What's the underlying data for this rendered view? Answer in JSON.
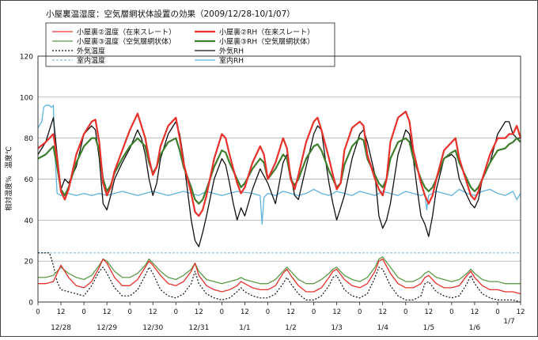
{
  "chart_data": {
    "type": "line",
    "title": "小屋裏温湿度：空気層網状体設置の効果（2009/12/28-10/1/07）",
    "ylabel": "相対湿度%　温度℃",
    "ylim": [
      0,
      120
    ],
    "yticks": [
      0,
      20,
      40,
      60,
      80,
      100,
      120
    ],
    "xlim": [
      0,
      252
    ],
    "xticks_hours": [
      0,
      12,
      24,
      36,
      48,
      60,
      72,
      84,
      96,
      108,
      120,
      132,
      144,
      156,
      168,
      180,
      192,
      204,
      216,
      228,
      240,
      252
    ],
    "xtick_labels": [
      "0",
      "12",
      "0",
      "12",
      "0",
      "12",
      "0",
      "12",
      "0",
      "12",
      "0",
      "12",
      "0",
      "12",
      "0",
      "12",
      "0",
      "12",
      "0",
      "12",
      "0",
      "12"
    ],
    "date_labels": [
      {
        "hour": 12,
        "text": "12/28"
      },
      {
        "hour": 36,
        "text": "12/29"
      },
      {
        "hour": 60,
        "text": "12/30"
      },
      {
        "hour": 84,
        "text": "12/31"
      },
      {
        "hour": 108,
        "text": "1/1"
      },
      {
        "hour": 132,
        "text": "1/2"
      },
      {
        "hour": 156,
        "text": "1/3"
      },
      {
        "hour": 180,
        "text": "1/4"
      },
      {
        "hour": 204,
        "text": "1/5"
      },
      {
        "hour": 228,
        "text": "1/6"
      },
      {
        "hour": 246,
        "text": "1/7"
      }
    ],
    "grid": "horizontal",
    "legend_position": "top",
    "series": [
      {
        "name": "小屋裏②温度（在来スレート）",
        "color": "#e8302a",
        "width": 1.3,
        "dash": "",
        "x": [
          0,
          4,
          8,
          10,
          12,
          16,
          20,
          24,
          28,
          32,
          34,
          36,
          40,
          44,
          48,
          52,
          56,
          58,
          60,
          64,
          68,
          72,
          76,
          80,
          82,
          84,
          88,
          92,
          96,
          100,
          104,
          106,
          108,
          112,
          116,
          120,
          124,
          128,
          130,
          132,
          136,
          140,
          144,
          148,
          152,
          154,
          156,
          160,
          164,
          168,
          172,
          176,
          178,
          180,
          184,
          188,
          192,
          196,
          200,
          202,
          204,
          208,
          212,
          216,
          220,
          224,
          226,
          228,
          232,
          236,
          240,
          244,
          248,
          252
        ],
        "y": [
          9,
          9,
          10,
          14,
          18,
          12,
          8,
          7,
          10,
          17,
          21,
          19,
          12,
          8,
          8,
          11,
          17,
          20,
          18,
          13,
          9,
          8,
          10,
          15,
          19,
          13,
          8,
          6,
          5,
          6,
          8,
          10,
          9,
          7,
          6,
          6,
          8,
          14,
          16,
          13,
          8,
          5,
          5,
          7,
          12,
          15,
          16,
          11,
          8,
          7,
          9,
          15,
          20,
          21,
          14,
          9,
          7,
          7,
          9,
          12,
          13,
          9,
          7,
          7,
          8,
          13,
          15,
          12,
          8,
          6,
          6,
          5,
          5,
          4
        ]
      },
      {
        "name": "小屋裏③温度（空気層網状体）",
        "color": "#5c9a46",
        "width": 1.3,
        "dash": "",
        "x": [
          0,
          4,
          8,
          10,
          12,
          16,
          20,
          24,
          28,
          32,
          34,
          36,
          40,
          44,
          48,
          52,
          56,
          58,
          60,
          64,
          68,
          72,
          76,
          80,
          82,
          84,
          88,
          92,
          96,
          100,
          104,
          106,
          108,
          112,
          116,
          120,
          124,
          128,
          130,
          132,
          136,
          140,
          144,
          148,
          152,
          154,
          156,
          160,
          164,
          168,
          172,
          176,
          178,
          180,
          184,
          188,
          192,
          196,
          200,
          202,
          204,
          208,
          212,
          216,
          220,
          224,
          226,
          228,
          232,
          236,
          240,
          244,
          248,
          252
        ],
        "y": [
          12,
          12,
          13,
          15,
          17,
          14,
          12,
          11,
          13,
          18,
          21,
          20,
          15,
          12,
          12,
          14,
          18,
          21,
          19,
          15,
          12,
          11,
          13,
          16,
          19,
          15,
          11,
          10,
          9,
          10,
          11,
          12,
          11,
          10,
          9,
          9,
          11,
          15,
          17,
          15,
          11,
          9,
          9,
          11,
          14,
          16,
          17,
          13,
          11,
          10,
          12,
          17,
          21,
          22,
          17,
          12,
          10,
          10,
          12,
          14,
          15,
          12,
          11,
          10,
          11,
          14,
          16,
          14,
          11,
          10,
          10,
          9,
          9,
          9
        ]
      },
      {
        "name": "外気温度",
        "color": "#111111",
        "width": 1.2,
        "dash": "2,2",
        "x": [
          0,
          4,
          6,
          8,
          10,
          12,
          16,
          20,
          24,
          28,
          32,
          34,
          36,
          40,
          44,
          48,
          52,
          56,
          58,
          60,
          64,
          68,
          72,
          76,
          80,
          82,
          84,
          88,
          92,
          96,
          100,
          104,
          106,
          108,
          112,
          116,
          120,
          124,
          128,
          130,
          132,
          136,
          140,
          144,
          148,
          152,
          154,
          156,
          160,
          164,
          168,
          172,
          176,
          178,
          180,
          184,
          188,
          192,
          196,
          200,
          202,
          204,
          208,
          212,
          216,
          220,
          224,
          226,
          228,
          232,
          236,
          240,
          244,
          248,
          252
        ],
        "y": [
          24,
          24,
          24,
          18,
          10,
          6,
          5,
          4,
          3,
          8,
          15,
          17,
          14,
          7,
          3,
          3,
          6,
          13,
          17,
          14,
          6,
          3,
          2,
          4,
          9,
          15,
          9,
          4,
          2,
          1,
          2,
          5,
          7,
          5,
          3,
          2,
          2,
          4,
          9,
          12,
          9,
          4,
          1,
          1,
          3,
          8,
          12,
          13,
          6,
          3,
          2,
          4,
          12,
          17,
          16,
          8,
          3,
          1,
          1,
          3,
          9,
          10,
          5,
          3,
          2,
          3,
          9,
          13,
          9,
          4,
          2,
          1,
          1,
          1,
          0
        ]
      },
      {
        "name": "室内温度",
        "color": "#9cc9e6",
        "width": 1.4,
        "dash": "3,2",
        "x": [
          0,
          20,
          40,
          60,
          80,
          100,
          120,
          140,
          160,
          180,
          200,
          220,
          240,
          252
        ],
        "y": [
          24,
          24,
          24,
          24,
          24,
          24,
          24,
          24,
          24,
          24,
          24,
          24,
          24,
          24
        ]
      },
      {
        "name": "小屋裏②RH（在来スレート）",
        "color": "#e8302a",
        "width": 2.2,
        "dash": "",
        "x": [
          0,
          4,
          8,
          10,
          12,
          14,
          16,
          20,
          24,
          28,
          30,
          32,
          34,
          36,
          38,
          40,
          44,
          48,
          52,
          56,
          58,
          60,
          62,
          64,
          68,
          72,
          74,
          76,
          80,
          82,
          84,
          86,
          88,
          92,
          96,
          98,
          100,
          104,
          106,
          108,
          112,
          116,
          118,
          120,
          124,
          128,
          130,
          132,
          134,
          136,
          140,
          144,
          146,
          148,
          152,
          154,
          156,
          158,
          160,
          164,
          168,
          170,
          172,
          176,
          178,
          180,
          182,
          184,
          188,
          192,
          194,
          196,
          200,
          202,
          204,
          206,
          208,
          212,
          216,
          218,
          220,
          224,
          226,
          228,
          230,
          232,
          236,
          240,
          244,
          246,
          248,
          250,
          252
        ],
        "y": [
          75,
          78,
          82,
          70,
          54,
          50,
          55,
          72,
          82,
          88,
          89,
          78,
          58,
          52,
          56,
          64,
          74,
          84,
          92,
          80,
          70,
          62,
          66,
          76,
          86,
          90,
          80,
          68,
          53,
          44,
          42,
          45,
          52,
          70,
          82,
          80,
          72,
          58,
          53,
          56,
          68,
          76,
          72,
          60,
          68,
          80,
          75,
          60,
          55,
          62,
          78,
          88,
          90,
          84,
          70,
          62,
          55,
          58,
          74,
          85,
          88,
          86,
          72,
          60,
          55,
          52,
          60,
          78,
          90,
          93,
          88,
          74,
          58,
          52,
          48,
          52,
          60,
          74,
          78,
          80,
          70,
          58,
          52,
          50,
          54,
          60,
          72,
          80,
          80,
          82,
          82,
          86,
          80
        ]
      },
      {
        "name": "小屋裏③RH（空気層網状体）",
        "color": "#3e7d2e",
        "width": 2.2,
        "dash": "",
        "x": [
          0,
          4,
          8,
          10,
          12,
          14,
          16,
          20,
          24,
          28,
          30,
          32,
          34,
          36,
          38,
          40,
          44,
          48,
          52,
          56,
          58,
          60,
          62,
          64,
          68,
          72,
          74,
          76,
          80,
          82,
          84,
          86,
          88,
          92,
          96,
          98,
          100,
          104,
          106,
          108,
          112,
          116,
          118,
          120,
          124,
          128,
          130,
          132,
          134,
          136,
          140,
          144,
          146,
          148,
          152,
          154,
          156,
          158,
          160,
          164,
          168,
          170,
          172,
          176,
          178,
          180,
          182,
          184,
          188,
          192,
          194,
          196,
          200,
          202,
          204,
          206,
          208,
          212,
          216,
          218,
          220,
          224,
          226,
          228,
          230,
          232,
          236,
          240,
          244,
          246,
          248,
          250,
          252
        ],
        "y": [
          70,
          72,
          76,
          66,
          55,
          52,
          56,
          68,
          76,
          80,
          80,
          74,
          60,
          54,
          57,
          63,
          70,
          76,
          80,
          76,
          68,
          63,
          66,
          72,
          78,
          80,
          74,
          66,
          56,
          50,
          48,
          50,
          55,
          66,
          74,
          73,
          68,
          60,
          56,
          58,
          65,
          70,
          68,
          60,
          65,
          72,
          70,
          60,
          57,
          60,
          70,
          76,
          77,
          74,
          64,
          60,
          56,
          58,
          67,
          76,
          80,
          79,
          70,
          62,
          58,
          56,
          60,
          70,
          78,
          80,
          78,
          70,
          60,
          56,
          54,
          56,
          60,
          70,
          73,
          74,
          68,
          60,
          56,
          54,
          56,
          60,
          68,
          74,
          75,
          77,
          78,
          80,
          78
        ]
      },
      {
        "name": "外気RH",
        "color": "#111111",
        "width": 1.3,
        "dash": "",
        "x": [
          0,
          4,
          8,
          10,
          12,
          14,
          16,
          20,
          24,
          28,
          30,
          32,
          34,
          36,
          38,
          40,
          44,
          48,
          52,
          54,
          56,
          58,
          60,
          62,
          64,
          68,
          72,
          74,
          76,
          78,
          80,
          82,
          84,
          86,
          88,
          92,
          96,
          98,
          100,
          102,
          104,
          106,
          108,
          112,
          116,
          120,
          124,
          128,
          130,
          132,
          134,
          136,
          140,
          144,
          146,
          148,
          150,
          152,
          154,
          156,
          158,
          160,
          164,
          168,
          170,
          172,
          176,
          178,
          180,
          182,
          184,
          188,
          192,
          194,
          196,
          198,
          200,
          202,
          204,
          206,
          208,
          212,
          216,
          218,
          220,
          224,
          226,
          228,
          230,
          232,
          236,
          240,
          244,
          246,
          248,
          250,
          252
        ],
        "y": [
          72,
          78,
          90,
          72,
          55,
          60,
          58,
          66,
          82,
          86,
          84,
          70,
          48,
          45,
          52,
          60,
          68,
          75,
          84,
          80,
          72,
          60,
          52,
          58,
          70,
          82,
          88,
          82,
          70,
          55,
          40,
          30,
          27,
          34,
          42,
          60,
          70,
          67,
          58,
          48,
          40,
          46,
          42,
          55,
          65,
          58,
          48,
          68,
          72,
          62,
          52,
          50,
          66,
          82,
          86,
          84,
          70,
          58,
          48,
          40,
          46,
          52,
          70,
          82,
          84,
          78,
          62,
          42,
          36,
          40,
          48,
          72,
          84,
          82,
          70,
          55,
          42,
          38,
          32,
          42,
          55,
          70,
          72,
          70,
          60,
          52,
          48,
          46,
          50,
          60,
          68,
          82,
          88,
          88,
          82,
          80,
          80
        ]
      },
      {
        "name": "室内RH",
        "color": "#5fb3e0",
        "width": 1.3,
        "dash": "",
        "x": [
          0,
          2,
          3,
          4,
          5,
          6,
          7,
          8,
          9,
          10,
          12,
          16,
          20,
          24,
          28,
          32,
          36,
          40,
          44,
          48,
          52,
          56,
          60,
          64,
          68,
          72,
          76,
          80,
          84,
          88,
          92,
          96,
          100,
          104,
          112,
          116,
          117,
          118,
          120,
          124,
          128,
          132,
          136,
          140,
          144,
          148,
          152,
          156,
          160,
          164,
          168,
          172,
          176,
          180,
          184,
          188,
          192,
          196,
          200,
          202,
          203,
          204,
          208,
          212,
          216,
          220,
          224,
          228,
          232,
          236,
          240,
          244,
          248,
          250,
          252
        ],
        "y": [
          85,
          88,
          95,
          96,
          96,
          96,
          95,
          96,
          70,
          53,
          52,
          53,
          52,
          53,
          52,
          53,
          52,
          53,
          54,
          53,
          52,
          53,
          54,
          53,
          52,
          53,
          54,
          53,
          52,
          54,
          53,
          52,
          53,
          54,
          53,
          52,
          38,
          51,
          53,
          52,
          54,
          53,
          52,
          53,
          55,
          53,
          52,
          54,
          53,
          52,
          54,
          53,
          52,
          54,
          53,
          52,
          54,
          53,
          52,
          53,
          45,
          52,
          54,
          53,
          52,
          55,
          53,
          52,
          54,
          55,
          53,
          52,
          54,
          50,
          53
        ]
      }
    ]
  }
}
